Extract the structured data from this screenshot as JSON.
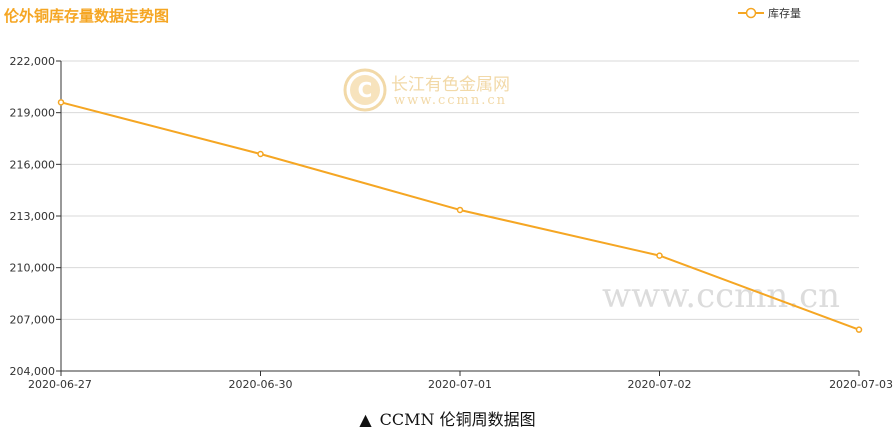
{
  "colors": {
    "series": "#f5a623",
    "title": "#f5a623",
    "grid": "#d9d9d9",
    "axis": "#333333",
    "watermark": "#f2d9a8",
    "watermark_gray": "#dcdcdc"
  },
  "watermark": {
    "brand": "长江有色金属网",
    "url_small": "www.ccmn.cn",
    "url_large": "www.ccmn.cn",
    "logo_glyph": "C"
  },
  "caption": {
    "marker": "▲",
    "text": "CCMN 伦铜周数据图"
  },
  "chart_data": {
    "type": "line",
    "title": "伦外铜库存量数据走势图",
    "xlabel": "",
    "ylabel": "",
    "categories": [
      "2020-06-27",
      "2020-06-30",
      "2020-07-01",
      "2020-07-02",
      "2020-07-03"
    ],
    "series": [
      {
        "name": "库存量",
        "values": [
          219600,
          216600,
          213350,
          210700,
          206400
        ]
      }
    ],
    "ylim": [
      204000,
      222000
    ],
    "yticks": [
      204000,
      207000,
      210000,
      213000,
      216000,
      219000,
      222000
    ],
    "ytick_labels": [
      "204,000",
      "207,000",
      "210,000",
      "213,000",
      "216,000",
      "219,000",
      "222,000"
    ],
    "grid": true,
    "legend": "top-right"
  }
}
